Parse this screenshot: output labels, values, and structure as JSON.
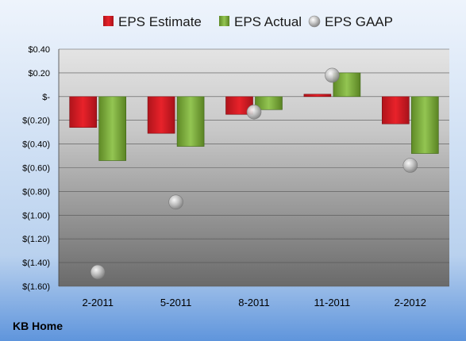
{
  "company": "KB Home",
  "colors": {
    "estimate": "#e8222a",
    "actual": "#8fc24a",
    "gaap": "#c8c8c8"
  },
  "chart_data": {
    "type": "bar",
    "categories": [
      "2-2011",
      "5-2011",
      "8-2011",
      "11-2011",
      "2-2012"
    ],
    "series": [
      {
        "name": "EPS Estimate",
        "values": [
          -0.26,
          -0.31,
          -0.15,
          0.02,
          -0.23
        ]
      },
      {
        "name": "EPS Actual",
        "values": [
          -0.54,
          -0.42,
          -0.11,
          0.2,
          -0.48
        ]
      },
      {
        "name": "EPS GAAP",
        "values": [
          -1.48,
          -0.89,
          -0.13,
          0.18,
          -0.58
        ]
      }
    ],
    "ylim": [
      -1.6,
      0.4
    ],
    "yticks": [
      0.4,
      0.2,
      0,
      -0.2,
      -0.4,
      -0.6,
      -0.8,
      -1.0,
      -1.2,
      -1.4,
      -1.6
    ],
    "ytick_labels": [
      "$0.40",
      "$0.20",
      "$-",
      "$(0.20)",
      "$(0.40)",
      "$(0.60)",
      "$(0.80)",
      "$(1.00)",
      "$(1.20)",
      "$(1.40)",
      "$(1.60)"
    ],
    "legend_position": "top",
    "grid": true
  }
}
